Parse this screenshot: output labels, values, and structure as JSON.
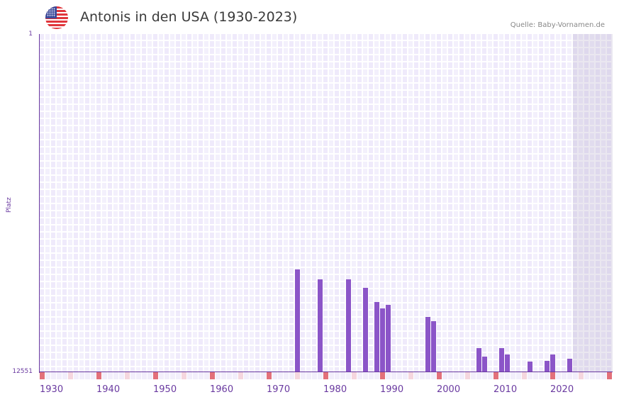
{
  "header": {
    "title": "Antonis in den USA (1930-2023)",
    "source": "Quelle: Baby-Vornamen.de",
    "flag_icon": "us-flag-icon"
  },
  "colors": {
    "bar": "#8b55c8",
    "axis": "#6a3aa0",
    "decade_marker": "#e2707a",
    "half_decade_marker": "#f5d6de"
  },
  "chart_data": {
    "type": "bar",
    "title": "Antonis in den USA (1930-2023)",
    "xlabel": "",
    "ylabel": "Platz",
    "y_inverted": true,
    "ylim": [
      1,
      12551
    ],
    "xlim": [
      1930,
      2030
    ],
    "grid": true,
    "legend": null,
    "y_tick_labels": [
      "1",
      "12551"
    ],
    "x_tick_labels": [
      "1930",
      "1940",
      "1950",
      "1960",
      "1970",
      "1980",
      "1990",
      "2000",
      "2010",
      "2020"
    ],
    "shaded_future_from": 2024,
    "annotations": [
      "Quelle: Baby-Vornamen.de"
    ],
    "categories": [
      1975,
      1979,
      1984,
      1987,
      1989,
      1990,
      1991,
      1998,
      1999,
      2007,
      2008,
      2011,
      2012,
      2016,
      2019,
      2020,
      2023
    ],
    "values": [
      8740,
      9100,
      9100,
      9420,
      9950,
      10180,
      10050,
      10500,
      10660,
      11660,
      11970,
      11660,
      11890,
      12160,
      12130,
      11890,
      12050
    ]
  },
  "axes": {
    "y_top": "1",
    "y_bottom": "12551",
    "y_label": "Platz",
    "x_labels": [
      "1930",
      "1940",
      "1950",
      "1960",
      "1970",
      "1980",
      "1990",
      "2000",
      "2010",
      "2020"
    ]
  }
}
